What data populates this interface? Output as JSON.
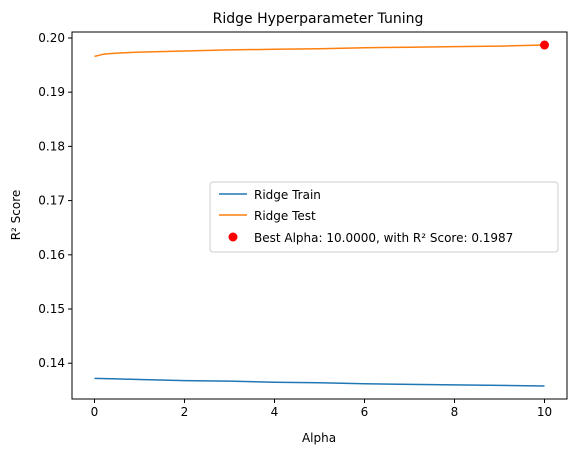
{
  "chart_data": {
    "type": "line",
    "title": "Ridge Hyperparameter Tuning",
    "xlabel": "Alpha",
    "ylabel": "R² Score",
    "xlim": [
      -0.5,
      10.5
    ],
    "ylim": [
      0.1334,
      0.2011
    ],
    "xticks": [
      0,
      2,
      4,
      6,
      8,
      10
    ],
    "yticks": [
      0.14,
      0.15,
      0.16,
      0.17,
      0.18,
      0.19,
      0.2
    ],
    "grid": false,
    "legend_position": "center-right",
    "series": [
      {
        "name": "Ridge Train",
        "color": "#1f77b4",
        "x": [
          0,
          0.5,
          1,
          2,
          3,
          4,
          5,
          6,
          7,
          8,
          9,
          10
        ],
        "y": [
          0.1372,
          0.1371,
          0.137,
          0.1368,
          0.1367,
          0.1365,
          0.1364,
          0.1362,
          0.1361,
          0.136,
          0.1359,
          0.1358
        ]
      },
      {
        "name": "Ridge Test",
        "color": "#ff7f0e",
        "x": [
          0,
          0.1,
          0.2,
          0.3,
          0.5,
          1,
          2,
          3,
          4,
          5,
          6,
          7,
          8,
          9,
          10
        ],
        "y": [
          0.1966,
          0.1968,
          0.197,
          0.1971,
          0.1972,
          0.1974,
          0.1976,
          0.1978,
          0.1979,
          0.198,
          0.1982,
          0.1983,
          0.1984,
          0.1985,
          0.1987
        ]
      }
    ],
    "best_point": {
      "label": "Best Alpha: 10.0000, with R² Score: 0.1987",
      "x": 10,
      "y": 0.1987,
      "color": "#ff0000"
    }
  }
}
